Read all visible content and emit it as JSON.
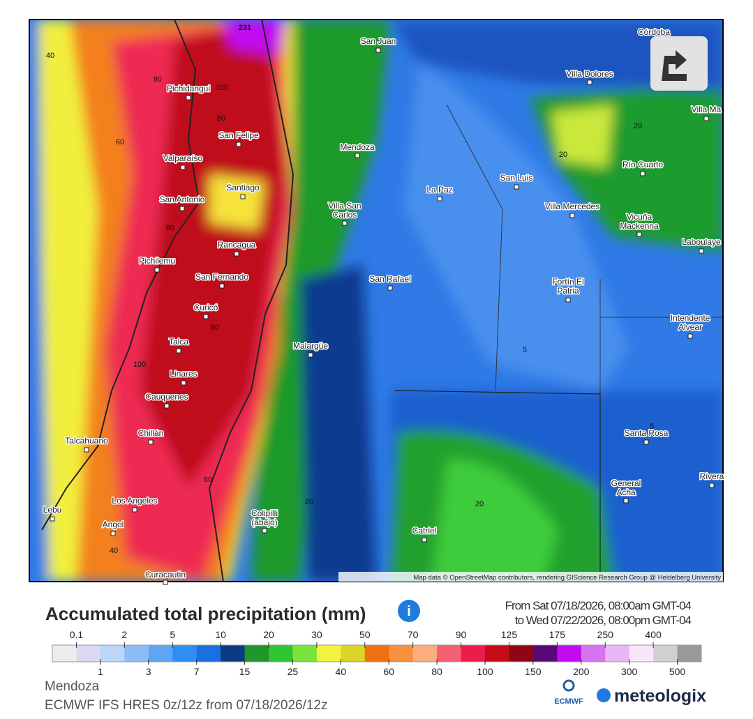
{
  "map": {
    "cities": [
      [
        "Córdoba"
      ],
      [
        "San Juan"
      ],
      [
        "Villa Dolores"
      ],
      [
        "Villa Ma"
      ],
      [
        "Pichidangui"
      ],
      [
        "San Felipe"
      ],
      [
        "Mendoza"
      ],
      [
        "Valparaíso"
      ],
      [
        "Santiago"
      ],
      [
        "San Luis"
      ],
      [
        "La Paz"
      ],
      [
        "Río Cuarto"
      ],
      [
        "San Antonio"
      ],
      [
        "Villa San",
        "Carlos"
      ],
      [
        "Villa Mercedes"
      ],
      [
        "Vicuña",
        "Mackenna"
      ],
      [
        "Laboulaye"
      ],
      [
        "Rancagua"
      ],
      [
        "Pichilemu"
      ],
      [
        "San Fernando"
      ],
      [
        "San Rafael"
      ],
      [
        "Fortín El",
        "Patria"
      ],
      [
        "Curicó"
      ],
      [
        "Intendente",
        "Alvear"
      ],
      [
        "Malargüe"
      ],
      [
        "Talca"
      ],
      [
        "Linares"
      ],
      [
        "Cauquenes"
      ],
      [
        "Santa Rosa"
      ],
      [
        "Chillán"
      ],
      [
        "Talcahuano"
      ],
      [
        "General",
        "Acha"
      ],
      [
        "Rivera"
      ],
      [
        "Los Angeles"
      ],
      [
        "Lebu"
      ],
      [
        "Colipilli",
        "(abajo)"
      ],
      [
        "Angol"
      ],
      [
        "Catriel"
      ],
      [
        "Curacautin"
      ]
    ],
    "contour_labels": [
      40,
      231,
      80,
      100,
      80,
      60,
      80,
      80,
      100,
      5,
      5,
      20,
      20,
      60,
      20,
      20,
      40
    ],
    "attribution": "Map data © OpenStreetMap contributors, rendering GIScience Research Group @ Heidelberg University"
  },
  "legend": {
    "title": "Accumulated total precipitation (mm)",
    "date_from": "From Sat 07/18/2026, 08:00am GMT-04",
    "date_to": "to Wed 07/22/2026, 08:00pm GMT-04",
    "top_labels": [
      0.1,
      2,
      5,
      10,
      20,
      30,
      50,
      70,
      90,
      125,
      175,
      250,
      400
    ],
    "bottom_labels": [
      1,
      3,
      7,
      15,
      25,
      40,
      60,
      80,
      100,
      150,
      200,
      300,
      500
    ],
    "colors": [
      "#ececec",
      "#dad8f2",
      "#bcd5fb",
      "#8dbdf6",
      "#5ea6f3",
      "#2f8ef2",
      "#1b6fe0",
      "#0c3a85",
      "#22952c",
      "#2fc534",
      "#7be23b",
      "#f3f340",
      "#dbd42b",
      "#f07112",
      "#f8913f",
      "#fbae7e",
      "#f55f73",
      "#ec1c4e",
      "#c60b17",
      "#8d0616",
      "#57097a",
      "#c10cf0",
      "#d873f0",
      "#eab6f6",
      "#fae6fb",
      "#d0d0d0",
      "#999999"
    ]
  },
  "footer": {
    "location": "Mendoza",
    "model": "ECMWF IFS HRES 0z/12z from 07/18/2026/12z",
    "logo_ecmwf": "ECMWF",
    "logo_meteologix": "meteologix"
  }
}
